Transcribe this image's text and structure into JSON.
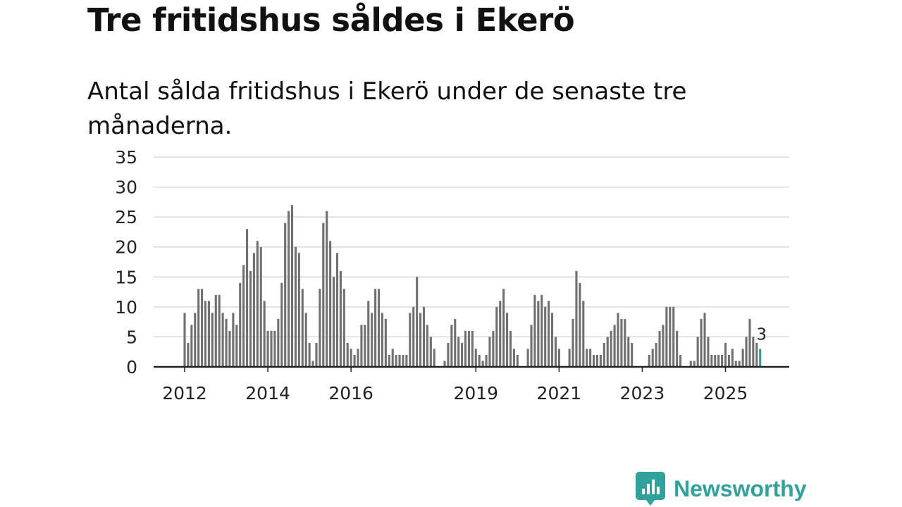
{
  "header": {
    "title": "Tre fritidshus såldes i Ekerö",
    "subtitle": "Antal sålda fritidshus i Ekerö under de senaste tre månaderna."
  },
  "brand": {
    "name": "Newsworthy",
    "icon": "newsworthy-logo-icon",
    "color": "#2fa39b"
  },
  "chart_data": {
    "type": "bar",
    "title": "Tre fritidshus såldes i Ekerö",
    "subtitle": "Antal sålda fritidshus i Ekerö under de senaste tre månaderna.",
    "xlabel": "",
    "ylabel": "",
    "ylim": [
      0,
      35
    ],
    "yticks": [
      0,
      5,
      10,
      15,
      20,
      25,
      30,
      35
    ],
    "grid": true,
    "legend": "none",
    "x_start": "2012-01",
    "x_end": "2025-11",
    "xtick_labels": [
      {
        "label": "2012",
        "month": "2012-01"
      },
      {
        "label": "2014",
        "month": "2014-01"
      },
      {
        "label": "2016",
        "month": "2016-01"
      },
      {
        "label": "2019",
        "month": "2019-01"
      },
      {
        "label": "2021",
        "month": "2021-01"
      },
      {
        "label": "2023",
        "month": "2023-01"
      },
      {
        "label": "2025",
        "month": "2025-01"
      }
    ],
    "bar_color": "#707070",
    "highlight_color": "#21a39b",
    "highlight_label": "3",
    "values": [
      9,
      4,
      7,
      9,
      13,
      13,
      11,
      11,
      9,
      12,
      12,
      9,
      8,
      6,
      9,
      7,
      14,
      17,
      23,
      16,
      19,
      21,
      20,
      11,
      6,
      6,
      6,
      8,
      14,
      24,
      26,
      27,
      20,
      19,
      13,
      9,
      4,
      1,
      4,
      13,
      24,
      26,
      21,
      15,
      19,
      16,
      13,
      4,
      3,
      2,
      3,
      7,
      7,
      11,
      9,
      13,
      13,
      9,
      8,
      2,
      3,
      2,
      2,
      2,
      2,
      9,
      10,
      15,
      9,
      10,
      7,
      5,
      3,
      0,
      0,
      1,
      4,
      7,
      8,
      5,
      4,
      6,
      6,
      6,
      3,
      2,
      1,
      2,
      5,
      6,
      10,
      11,
      13,
      9,
      6,
      3,
      2,
      0,
      0,
      3,
      7,
      12,
      11,
      12,
      10,
      11,
      9,
      5,
      3,
      0,
      0,
      3,
      8,
      16,
      14,
      11,
      3,
      3,
      2,
      2,
      2,
      4,
      5,
      6,
      7,
      9,
      8,
      8,
      5,
      4,
      0,
      0,
      0,
      0,
      2,
      3,
      4,
      6,
      7,
      10,
      10,
      10,
      6,
      2,
      0,
      0,
      1,
      1,
      5,
      8,
      9,
      5,
      2,
      2,
      2,
      2,
      4,
      2,
      3,
      1,
      1,
      3,
      5,
      8,
      5,
      4,
      3
    ]
  }
}
